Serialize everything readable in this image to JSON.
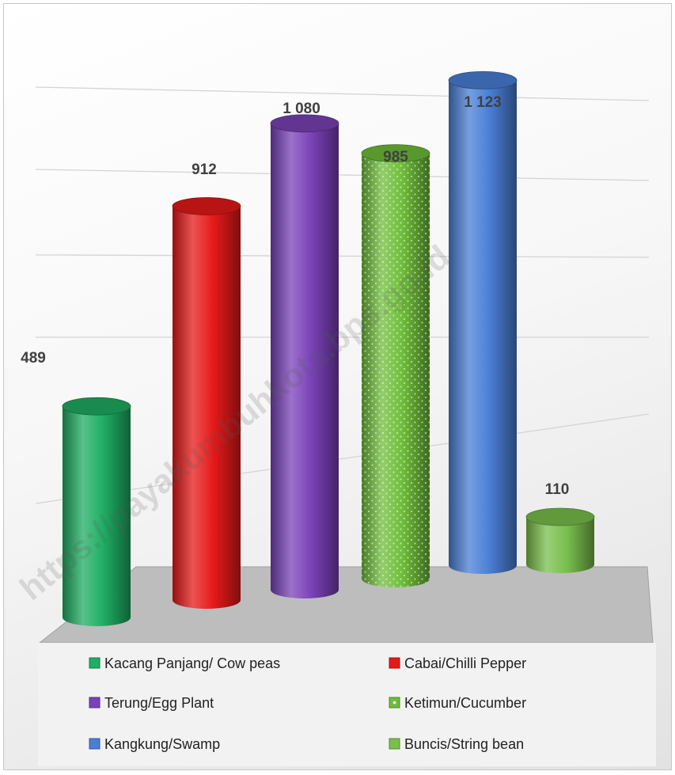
{
  "chart_data": {
    "type": "bar",
    "style": "3d-cylinder",
    "categories": [
      "Kacang Panjang/ Cow peas",
      "Cabai/Chilli Pepper",
      "Terung/Egg Plant",
      "Ketimun/Cucumber",
      "Kangkung/Swamp",
      "Buncis/String bean"
    ],
    "values": [
      489,
      912,
      1080,
      985,
      1123,
      110
    ],
    "value_labels": [
      "489",
      "912",
      "1 080",
      "985",
      "1 123",
      "110"
    ],
    "colors": [
      "#1fae63",
      "#e61919",
      "#7a42b8",
      "#6fbe3a",
      "#4a7fd6",
      "#79bf4c"
    ],
    "patterns": [
      "solid",
      "solid",
      "solid",
      "dotted",
      "solid",
      "solid"
    ],
    "ylim": [
      0,
      1200
    ],
    "grid": true,
    "legend_position": "bottom",
    "title": "",
    "xlabel": "",
    "ylabel": ""
  },
  "watermark": "https://payakumbuhkota.bps.go.id"
}
